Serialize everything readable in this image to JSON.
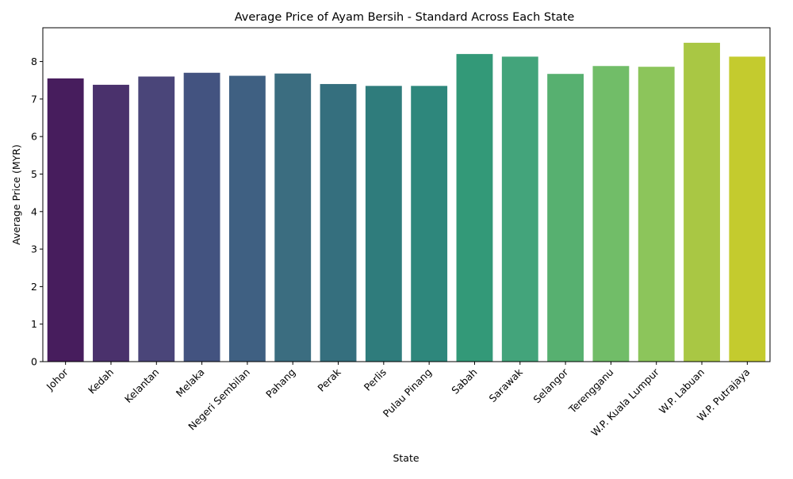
{
  "chart_data": {
    "type": "bar",
    "title": "Average Price of Ayam Bersih - Standard Across Each State",
    "xlabel": "State",
    "ylabel": "Average Price (MYR)",
    "ylim": [
      0,
      8.9
    ],
    "yticks": [
      0,
      1,
      2,
      3,
      4,
      5,
      6,
      7,
      8
    ],
    "grid": false,
    "legend": "none",
    "categories": [
      "Johor",
      "Kedah",
      "Kelantan",
      "Melaka",
      "Negeri Sembilan",
      "Pahang",
      "Perak",
      "Perlis",
      "Pulau Pinang",
      "Sabah",
      "Sarawak",
      "Selangor",
      "Terengganu",
      "W.P. Kuala Lumpur",
      "W.P. Labuan",
      "W.P. Putrajaya"
    ],
    "values": [
      7.55,
      7.38,
      7.6,
      7.7,
      7.62,
      7.68,
      7.4,
      7.35,
      7.35,
      8.2,
      8.13,
      7.67,
      7.88,
      7.86,
      8.5,
      8.13
    ],
    "colors": [
      "#471d5d",
      "#4a316c",
      "#4a4579",
      "#435380",
      "#3f6082",
      "#3b6d80",
      "#356f7e",
      "#2f7c7c",
      "#2e877c",
      "#339978",
      "#43a47b",
      "#57b070",
      "#71bd68",
      "#8cc55b",
      "#a9c744",
      "#c4cb2e"
    ]
  }
}
